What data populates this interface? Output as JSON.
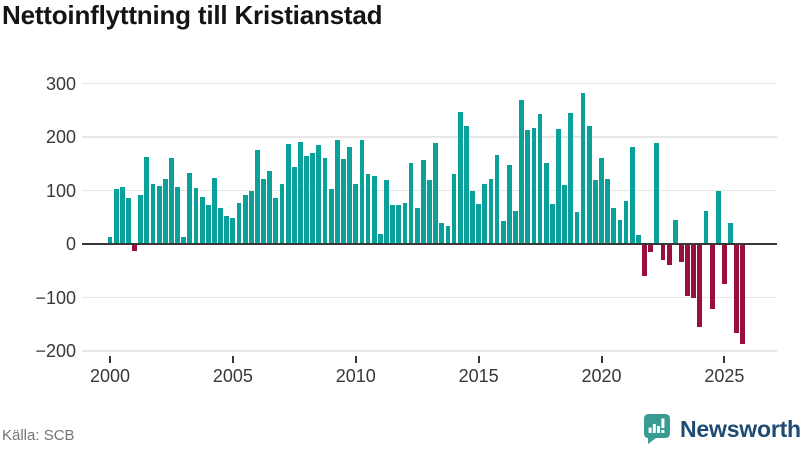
{
  "title": "Nettoinflyttning till Kristianstad",
  "source": {
    "label": "Källa: SCB"
  },
  "branding": {
    "name": "Newsworthy",
    "icon": "newsworthy-speech-bubble-bar-chart-icon",
    "icon_color": "#3a9b94",
    "wordmark_color": "#1e4a73"
  },
  "colors": {
    "bar_positive": "#0aa19a",
    "bar_negative": "#990f3d",
    "gridline": "#e7e7e7",
    "zero_line": "#383838",
    "axis_text": "#383838",
    "title_text": "#141414",
    "source_text": "#757575"
  },
  "chart_data": {
    "type": "bar",
    "title": "Nettoinflyttning till Kristianstad",
    "x_unit": "quarter",
    "x_range": "2000 Q1 – 2025 Q4",
    "grid": true,
    "ylim": [
      -200,
      300
    ],
    "y_ticks": [
      300,
      200,
      100,
      0,
      -100,
      -200
    ],
    "y_tick_labels": [
      "300",
      "200",
      "100",
      "0",
      "−100",
      "−200"
    ],
    "x_tick_labels": [
      "2000",
      "2005",
      "2010",
      "2015",
      "2020",
      "2025"
    ],
    "years": [
      {
        "year": 2000,
        "quarters": [
          14,
          102,
          107,
          86
        ]
      },
      {
        "year": 2001,
        "quarters": [
          -14,
          92,
          163,
          112
        ]
      },
      {
        "year": 2002,
        "quarters": [
          108,
          121,
          160,
          106
        ]
      },
      {
        "year": 2003,
        "quarters": [
          14,
          133,
          104,
          88
        ]
      },
      {
        "year": 2004,
        "quarters": [
          73,
          123,
          67,
          52
        ]
      },
      {
        "year": 2005,
        "quarters": [
          48,
          77,
          91,
          99
        ]
      },
      {
        "year": 2006,
        "quarters": [
          176,
          121,
          137,
          86
        ]
      },
      {
        "year": 2007,
        "quarters": [
          112,
          187,
          143,
          190
        ]
      },
      {
        "year": 2008,
        "quarters": [
          164,
          171,
          185,
          160
        ]
      },
      {
        "year": 2009,
        "quarters": [
          102,
          195,
          158,
          181
        ]
      },
      {
        "year": 2010,
        "quarters": [
          112,
          195,
          131,
          127
        ]
      },
      {
        "year": 2011,
        "quarters": [
          18,
          120,
          73,
          73
        ]
      },
      {
        "year": 2012,
        "quarters": [
          76,
          151,
          68,
          157
        ]
      },
      {
        "year": 2013,
        "quarters": [
          120,
          188,
          39,
          34
        ]
      },
      {
        "year": 2014,
        "quarters": [
          131,
          246,
          220,
          100
        ]
      },
      {
        "year": 2015,
        "quarters": [
          74,
          113,
          121,
          167
        ]
      },
      {
        "year": 2016,
        "quarters": [
          43,
          148,
          62,
          270
        ]
      },
      {
        "year": 2017,
        "quarters": [
          213,
          217,
          243,
          151
        ]
      },
      {
        "year": 2018,
        "quarters": [
          74,
          215,
          110,
          245
        ]
      },
      {
        "year": 2019,
        "quarters": [
          60,
          283,
          220,
          120
        ]
      },
      {
        "year": 2020,
        "quarters": [
          160,
          121,
          68,
          45
        ]
      },
      {
        "year": 2021,
        "quarters": [
          80,
          182,
          17,
          -60
        ]
      },
      {
        "year": 2022,
        "quarters": [
          -15,
          188,
          -30,
          -39
        ]
      },
      {
        "year": 2023,
        "quarters": [
          45,
          -33,
          -97,
          -100
        ]
      },
      {
        "year": 2024,
        "quarters": [
          -155,
          62,
          -122,
          100
        ]
      },
      {
        "year": 2025,
        "quarters": [
          -74,
          40,
          -166,
          -186
        ]
      }
    ]
  }
}
